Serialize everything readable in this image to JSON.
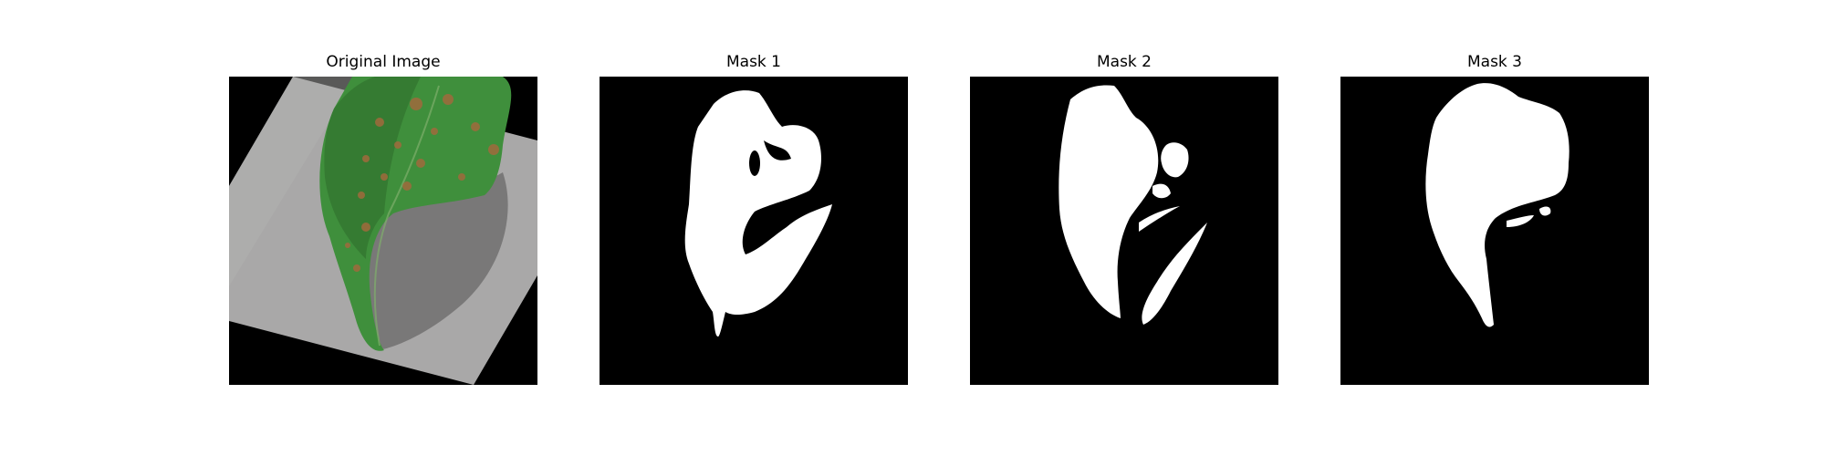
{
  "panels": [
    {
      "title": "Original Image",
      "kind": "photo"
    },
    {
      "title": "Mask 1",
      "kind": "mask"
    },
    {
      "title": "Mask 2",
      "kind": "mask"
    },
    {
      "title": "Mask 3",
      "kind": "mask"
    }
  ],
  "colors": {
    "background": "#000000",
    "foreground": "#ffffff",
    "paper_gray": "#a9a8a8",
    "leaf_green": "#3f8f3c",
    "leaf_dark": "#2e6e2c",
    "lesion_brown": "#a06a3c"
  }
}
